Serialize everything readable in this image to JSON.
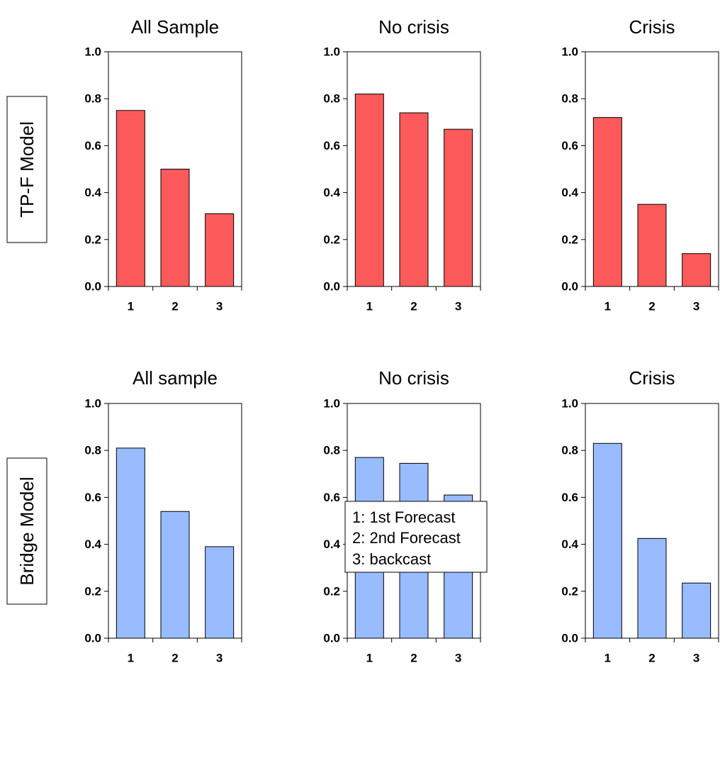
{
  "colors": {
    "red": "#fc5a5a",
    "blue": "#99bbff",
    "axis": "#000000"
  },
  "row_labels": [
    "TP-F Model",
    "Bridge Model"
  ],
  "legend": {
    "items": [
      "1: 1st Forecast",
      "2: 2nd Forecast",
      "3: backcast"
    ]
  },
  "chart_data": [
    {
      "type": "bar",
      "title": "All Sample",
      "categories": [
        "1",
        "2",
        "3"
      ],
      "values": [
        0.75,
        0.5,
        0.31
      ],
      "ylim": [
        0,
        1.0
      ],
      "yticks": [
        "0.0",
        "0.2",
        "0.4",
        "0.6",
        "0.8",
        "1.0"
      ],
      "color": "red"
    },
    {
      "type": "bar",
      "title": "No crisis",
      "categories": [
        "1",
        "2",
        "3"
      ],
      "values": [
        0.82,
        0.74,
        0.67
      ],
      "ylim": [
        0,
        1.0
      ],
      "yticks": [
        "0.0",
        "0.2",
        "0.4",
        "0.6",
        "0.8",
        "1.0"
      ],
      "color": "red"
    },
    {
      "type": "bar",
      "title": "Crisis",
      "categories": [
        "1",
        "2",
        "3"
      ],
      "values": [
        0.72,
        0.35,
        0.14
      ],
      "ylim": [
        0,
        1.0
      ],
      "yticks": [
        "0.0",
        "0.2",
        "0.4",
        "0.6",
        "0.8",
        "1.0"
      ],
      "color": "red"
    },
    {
      "type": "bar",
      "title": "All sample",
      "categories": [
        "1",
        "2",
        "3"
      ],
      "values": [
        0.81,
        0.54,
        0.39
      ],
      "ylim": [
        0,
        1.0
      ],
      "yticks": [
        "0.0",
        "0.2",
        "0.4",
        "0.6",
        "0.8",
        "1.0"
      ],
      "color": "blue"
    },
    {
      "type": "bar",
      "title": "No crisis",
      "categories": [
        "1",
        "2",
        "3"
      ],
      "values": [
        0.77,
        0.745,
        0.61
      ],
      "ylim": [
        0,
        1.0
      ],
      "yticks": [
        "0.0",
        "0.2",
        "0.4",
        "0.6",
        "0.8",
        "1.0"
      ],
      "color": "blue"
    },
    {
      "type": "bar",
      "title": "Crisis",
      "categories": [
        "1",
        "2",
        "3"
      ],
      "values": [
        0.83,
        0.425,
        0.235
      ],
      "ylim": [
        0,
        1.0
      ],
      "yticks": [
        "0.0",
        "0.2",
        "0.4",
        "0.6",
        "0.8",
        "1.0"
      ],
      "color": "blue"
    }
  ]
}
